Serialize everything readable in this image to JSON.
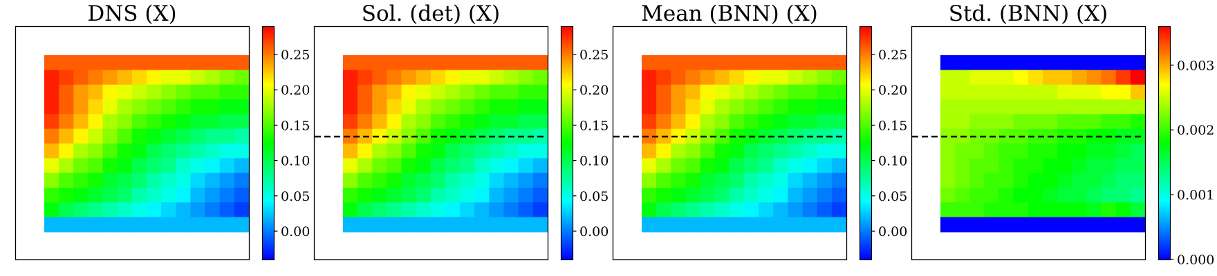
{
  "chart_data": [
    {
      "type": "heatmap",
      "title": "DNS (X)",
      "colorbar": {
        "vmin": -0.04,
        "vmax": 0.29,
        "ticks": [
          0.0,
          0.05,
          0.1,
          0.15,
          0.2,
          0.25
        ],
        "tick_labels": [
          "0.00",
          "0.05",
          "0.10",
          "0.15",
          "0.20",
          "0.25"
        ]
      },
      "values": [
        [
          0.26,
          0.26,
          0.26,
          0.26,
          0.26,
          0.26,
          0.26,
          0.26,
          0.26,
          0.26,
          0.26,
          0.26,
          0.26,
          0.26
        ],
        [
          0.28,
          0.27,
          0.26,
          0.25,
          0.24,
          0.23,
          0.22,
          0.21,
          0.2,
          0.2,
          0.19,
          0.18,
          0.17,
          0.16
        ],
        [
          0.28,
          0.26,
          0.24,
          0.23,
          0.21,
          0.2,
          0.19,
          0.18,
          0.17,
          0.16,
          0.15,
          0.15,
          0.14,
          0.14
        ],
        [
          0.28,
          0.26,
          0.24,
          0.22,
          0.2,
          0.18,
          0.17,
          0.16,
          0.15,
          0.14,
          0.13,
          0.13,
          0.12,
          0.12
        ],
        [
          0.27,
          0.25,
          0.23,
          0.21,
          0.18,
          0.17,
          0.15,
          0.14,
          0.13,
          0.12,
          0.11,
          0.11,
          0.1,
          0.1
        ],
        [
          0.25,
          0.23,
          0.21,
          0.19,
          0.17,
          0.15,
          0.13,
          0.12,
          0.11,
          0.1,
          0.09,
          0.08,
          0.08,
          0.07
        ],
        [
          0.23,
          0.21,
          0.18,
          0.17,
          0.15,
          0.13,
          0.12,
          0.1,
          0.09,
          0.08,
          0.07,
          0.06,
          0.05,
          0.05
        ],
        [
          0.2,
          0.18,
          0.16,
          0.15,
          0.13,
          0.12,
          0.1,
          0.09,
          0.08,
          0.06,
          0.05,
          0.04,
          0.03,
          0.02
        ],
        [
          0.17,
          0.15,
          0.14,
          0.13,
          0.11,
          0.1,
          0.09,
          0.07,
          0.06,
          0.05,
          0.03,
          0.02,
          0.01,
          0.0
        ],
        [
          0.14,
          0.13,
          0.12,
          0.11,
          0.1,
          0.09,
          0.07,
          0.06,
          0.05,
          0.04,
          0.02,
          0.01,
          0.0,
          -0.01
        ],
        [
          0.12,
          0.1,
          0.09,
          0.08,
          0.07,
          0.06,
          0.05,
          0.04,
          0.03,
          0.02,
          0.01,
          0.0,
          -0.01,
          -0.02
        ],
        [
          0.02,
          0.02,
          0.02,
          0.02,
          0.02,
          0.02,
          0.02,
          0.02,
          0.02,
          0.02,
          0.02,
          0.02,
          0.02,
          0.02
        ]
      ],
      "dashed_line": false
    },
    {
      "type": "heatmap",
      "title": "Sol. (det) (X)",
      "colorbar": {
        "vmin": -0.04,
        "vmax": 0.29,
        "ticks": [
          0.0,
          0.05,
          0.1,
          0.15,
          0.2,
          0.25
        ],
        "tick_labels": [
          "0.00",
          "0.05",
          "0.10",
          "0.15",
          "0.20",
          "0.25"
        ]
      },
      "values": [
        [
          0.26,
          0.26,
          0.26,
          0.26,
          0.26,
          0.26,
          0.26,
          0.26,
          0.26,
          0.26,
          0.26,
          0.26,
          0.26,
          0.26
        ],
        [
          0.28,
          0.27,
          0.26,
          0.25,
          0.24,
          0.23,
          0.22,
          0.21,
          0.2,
          0.2,
          0.19,
          0.18,
          0.17,
          0.16
        ],
        [
          0.28,
          0.26,
          0.24,
          0.23,
          0.21,
          0.2,
          0.19,
          0.18,
          0.17,
          0.16,
          0.15,
          0.15,
          0.14,
          0.14
        ],
        [
          0.28,
          0.26,
          0.24,
          0.22,
          0.2,
          0.18,
          0.17,
          0.16,
          0.15,
          0.14,
          0.13,
          0.13,
          0.12,
          0.12
        ],
        [
          0.27,
          0.25,
          0.23,
          0.21,
          0.18,
          0.17,
          0.15,
          0.14,
          0.13,
          0.12,
          0.11,
          0.11,
          0.1,
          0.1
        ],
        [
          0.25,
          0.23,
          0.21,
          0.19,
          0.17,
          0.15,
          0.13,
          0.12,
          0.11,
          0.1,
          0.09,
          0.08,
          0.08,
          0.07
        ],
        [
          0.23,
          0.21,
          0.18,
          0.17,
          0.15,
          0.13,
          0.12,
          0.1,
          0.09,
          0.08,
          0.07,
          0.06,
          0.05,
          0.05
        ],
        [
          0.2,
          0.18,
          0.16,
          0.15,
          0.13,
          0.12,
          0.1,
          0.09,
          0.08,
          0.06,
          0.05,
          0.04,
          0.03,
          0.02
        ],
        [
          0.17,
          0.15,
          0.14,
          0.13,
          0.11,
          0.1,
          0.09,
          0.07,
          0.06,
          0.05,
          0.03,
          0.02,
          0.01,
          0.0
        ],
        [
          0.14,
          0.13,
          0.12,
          0.11,
          0.1,
          0.09,
          0.07,
          0.06,
          0.05,
          0.04,
          0.02,
          0.01,
          0.0,
          -0.01
        ],
        [
          0.12,
          0.1,
          0.09,
          0.08,
          0.07,
          0.06,
          0.05,
          0.04,
          0.03,
          0.02,
          0.01,
          0.0,
          -0.01,
          -0.02
        ],
        [
          0.02,
          0.02,
          0.02,
          0.02,
          0.02,
          0.02,
          0.02,
          0.02,
          0.02,
          0.02,
          0.02,
          0.02,
          0.02,
          0.02
        ]
      ],
      "dashed_line": true
    },
    {
      "type": "heatmap",
      "title": "Mean (BNN) (X)",
      "colorbar": {
        "vmin": -0.04,
        "vmax": 0.29,
        "ticks": [
          0.0,
          0.05,
          0.1,
          0.15,
          0.2,
          0.25
        ],
        "tick_labels": [
          "0.00",
          "0.05",
          "0.10",
          "0.15",
          "0.20",
          "0.25"
        ]
      },
      "values": [
        [
          0.26,
          0.26,
          0.26,
          0.26,
          0.26,
          0.26,
          0.26,
          0.26,
          0.26,
          0.26,
          0.26,
          0.26,
          0.26,
          0.26
        ],
        [
          0.28,
          0.27,
          0.26,
          0.25,
          0.24,
          0.23,
          0.22,
          0.21,
          0.2,
          0.2,
          0.19,
          0.18,
          0.17,
          0.16
        ],
        [
          0.28,
          0.26,
          0.24,
          0.23,
          0.21,
          0.2,
          0.19,
          0.18,
          0.17,
          0.16,
          0.15,
          0.15,
          0.14,
          0.14
        ],
        [
          0.28,
          0.26,
          0.24,
          0.22,
          0.2,
          0.18,
          0.17,
          0.16,
          0.15,
          0.14,
          0.13,
          0.13,
          0.12,
          0.12
        ],
        [
          0.27,
          0.25,
          0.23,
          0.21,
          0.18,
          0.17,
          0.15,
          0.14,
          0.13,
          0.12,
          0.11,
          0.11,
          0.1,
          0.1
        ],
        [
          0.25,
          0.23,
          0.21,
          0.19,
          0.17,
          0.15,
          0.13,
          0.12,
          0.11,
          0.1,
          0.09,
          0.08,
          0.08,
          0.07
        ],
        [
          0.23,
          0.21,
          0.18,
          0.17,
          0.15,
          0.13,
          0.12,
          0.1,
          0.09,
          0.08,
          0.07,
          0.06,
          0.05,
          0.05
        ],
        [
          0.2,
          0.18,
          0.16,
          0.15,
          0.13,
          0.12,
          0.1,
          0.09,
          0.08,
          0.06,
          0.05,
          0.04,
          0.03,
          0.02
        ],
        [
          0.17,
          0.15,
          0.14,
          0.13,
          0.11,
          0.1,
          0.09,
          0.07,
          0.06,
          0.05,
          0.03,
          0.02,
          0.01,
          0.0
        ],
        [
          0.14,
          0.13,
          0.12,
          0.11,
          0.1,
          0.09,
          0.07,
          0.06,
          0.05,
          0.04,
          0.02,
          0.01,
          0.0,
          -0.01
        ],
        [
          0.12,
          0.1,
          0.09,
          0.08,
          0.07,
          0.06,
          0.05,
          0.04,
          0.03,
          0.02,
          0.01,
          0.0,
          -0.01,
          -0.02
        ],
        [
          0.02,
          0.02,
          0.02,
          0.02,
          0.02,
          0.02,
          0.02,
          0.02,
          0.02,
          0.02,
          0.02,
          0.02,
          0.02,
          0.02
        ]
      ],
      "dashed_line": true
    },
    {
      "type": "heatmap",
      "title": "Std. (BNN) (X)",
      "colorbar": {
        "vmin": 0.0,
        "vmax": 0.0036,
        "ticks": [
          0.0,
          0.001,
          0.002,
          0.003
        ],
        "tick_labels": [
          "0.000",
          "0.001",
          "0.002",
          "0.003"
        ]
      },
      "values": [
        [
          0.0,
          0.0,
          0.0,
          0.0,
          0.0,
          0.0,
          0.0,
          0.0,
          0.0,
          0.0,
          0.0,
          0.0,
          0.0,
          0.0
        ],
        [
          0.0025,
          0.0025,
          0.0026,
          0.0026,
          0.0026,
          0.0027,
          0.0028,
          0.0029,
          0.0029,
          0.003,
          0.0031,
          0.0032,
          0.0034,
          0.0036
        ],
        [
          0.0025,
          0.0025,
          0.0025,
          0.0025,
          0.0025,
          0.0025,
          0.0025,
          0.0025,
          0.0026,
          0.0026,
          0.0026,
          0.0027,
          0.0027,
          0.0029
        ],
        [
          0.0024,
          0.0024,
          0.0024,
          0.0024,
          0.0024,
          0.0024,
          0.0024,
          0.0024,
          0.0024,
          0.0024,
          0.0024,
          0.0024,
          0.0024,
          0.0024
        ],
        [
          0.0024,
          0.0024,
          0.0023,
          0.0023,
          0.0023,
          0.0022,
          0.0022,
          0.0022,
          0.0021,
          0.0021,
          0.0021,
          0.002,
          0.002,
          0.0019
        ],
        [
          0.0023,
          0.0023,
          0.0022,
          0.0022,
          0.0021,
          0.0021,
          0.002,
          0.002,
          0.0019,
          0.0019,
          0.0018,
          0.0018,
          0.0017,
          0.0017
        ],
        [
          0.0023,
          0.0022,
          0.0022,
          0.0021,
          0.002,
          0.002,
          0.0019,
          0.0019,
          0.0018,
          0.0018,
          0.0017,
          0.0017,
          0.0016,
          0.0015
        ],
        [
          0.0023,
          0.0022,
          0.0021,
          0.0021,
          0.002,
          0.0019,
          0.0019,
          0.0018,
          0.0018,
          0.0017,
          0.0016,
          0.0016,
          0.0015,
          0.0015
        ],
        [
          0.0023,
          0.0022,
          0.0021,
          0.002,
          0.002,
          0.0019,
          0.0018,
          0.0018,
          0.0017,
          0.0016,
          0.0016,
          0.0015,
          0.0014,
          0.0014
        ],
        [
          0.0022,
          0.0021,
          0.002,
          0.002,
          0.0019,
          0.0018,
          0.0018,
          0.0017,
          0.0016,
          0.0016,
          0.0015,
          0.0014,
          0.0014,
          0.0013
        ],
        [
          0.002,
          0.002,
          0.002,
          0.0019,
          0.0019,
          0.0019,
          0.0018,
          0.0018,
          0.0018,
          0.0018,
          0.0017,
          0.0019,
          0.0018,
          0.0016
        ],
        [
          0.0,
          0.0,
          0.0,
          0.0,
          0.0,
          0.0,
          0.0,
          0.0,
          0.0,
          0.0,
          0.0,
          0.0,
          0.0,
          0.0
        ]
      ],
      "dashed_line": true
    }
  ],
  "colormap": [
    "#0000ff",
    "#00ffff",
    "#00ff00",
    "#ffff00",
    "#ff0000"
  ],
  "line_color": "#000000"
}
